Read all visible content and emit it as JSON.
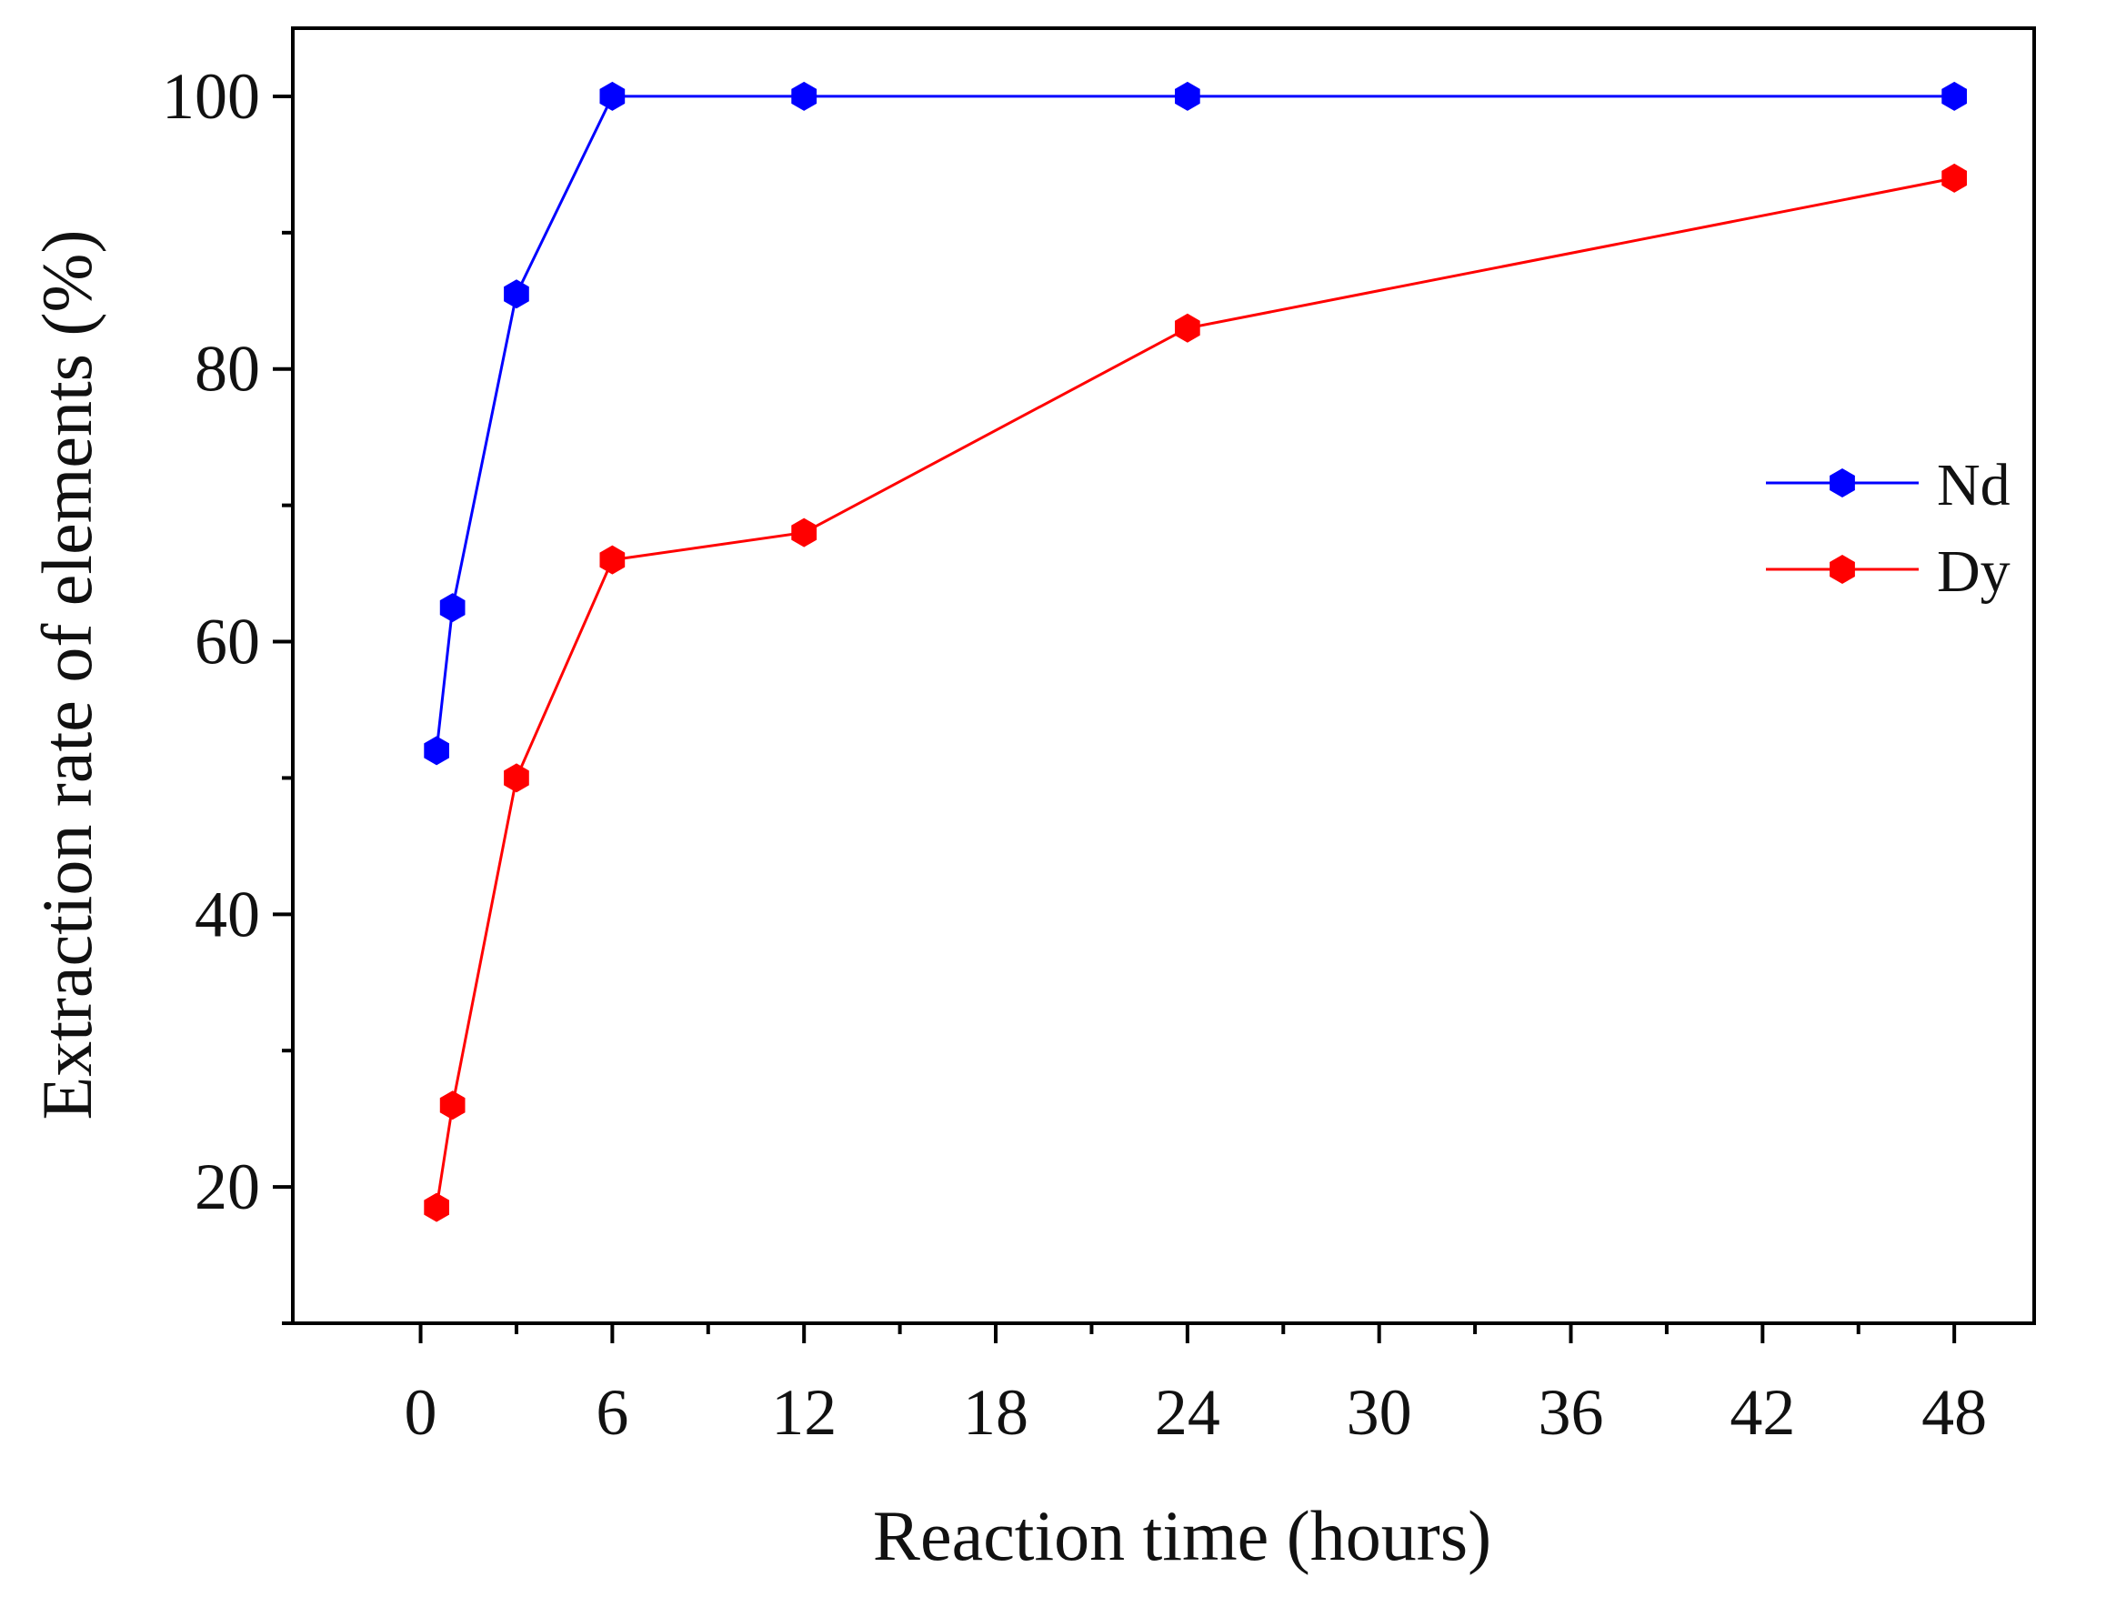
{
  "chart_data": {
    "type": "line",
    "title": "",
    "xlabel": "Reaction time (hours)",
    "ylabel": "Extraction rate of elements (%)",
    "xlim": [
      -4,
      50.5
    ],
    "ylim": [
      10,
      105
    ],
    "xticks": [
      0,
      6,
      12,
      18,
      24,
      30,
      36,
      42,
      48
    ],
    "yticks": [
      20,
      40,
      60,
      80,
      100
    ],
    "grid": false,
    "legend_position": "right",
    "series": [
      {
        "name": "Nd",
        "color": "#0000ff",
        "x": [
          0.5,
          1,
          3,
          6,
          12,
          24,
          48
        ],
        "y": [
          52,
          62.5,
          85.5,
          100,
          100,
          100,
          100
        ]
      },
      {
        "name": "Dy",
        "color": "#ff0000",
        "x": [
          0.5,
          1,
          3,
          6,
          12,
          24,
          48
        ],
        "y": [
          18.5,
          26,
          50,
          66,
          68,
          83,
          94
        ]
      }
    ]
  }
}
